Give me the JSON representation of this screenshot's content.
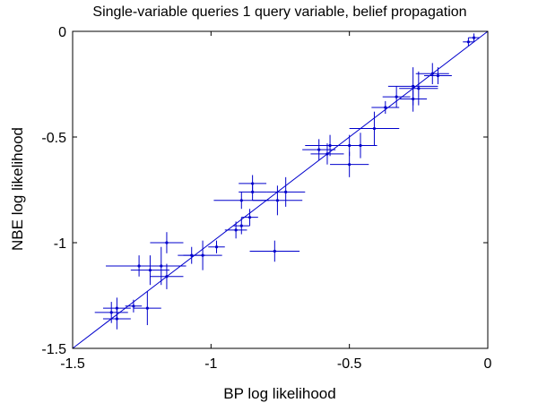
{
  "chart_data": {
    "type": "scatter",
    "title": "Single-variable queries 1 query variable, belief propagation",
    "xlabel": "BP log likelihood",
    "ylabel": "NBE log likelihood",
    "xlim": [
      -1.5,
      0
    ],
    "ylim": [
      -1.5,
      0
    ],
    "xticks": [
      -1.5,
      -1,
      -0.5,
      0
    ],
    "yticks": [
      -1.5,
      -1,
      -0.5,
      0
    ],
    "xtick_labels": [
      "-1.5",
      "-1",
      "-0.5",
      "0"
    ],
    "ytick_labels": [
      "-1.5",
      "-1",
      "-0.5",
      "0"
    ],
    "grid": false,
    "reference_line": "y = x",
    "series_color": "#0000cc",
    "points": [
      {
        "x": -0.05,
        "y": -0.03,
        "xerr": 0.02,
        "yerr": 0.02
      },
      {
        "x": -0.07,
        "y": -0.05,
        "xerr": 0.02,
        "yerr": 0.02
      },
      {
        "x": -0.2,
        "y": -0.2,
        "xerr": 0.06,
        "yerr": 0.05
      },
      {
        "x": -0.18,
        "y": -0.21,
        "xerr": 0.05,
        "yerr": 0.04
      },
      {
        "x": -0.27,
        "y": -0.26,
        "xerr": 0.09,
        "yerr": 0.09
      },
      {
        "x": -0.25,
        "y": -0.27,
        "xerr": 0.07,
        "yerr": 0.08
      },
      {
        "x": -0.27,
        "y": -0.32,
        "xerr": 0.05,
        "yerr": 0.06
      },
      {
        "x": -0.33,
        "y": -0.31,
        "xerr": 0.05,
        "yerr": 0.05
      },
      {
        "x": -0.37,
        "y": -0.36,
        "xerr": 0.05,
        "yerr": 0.03
      },
      {
        "x": -0.41,
        "y": -0.46,
        "xerr": 0.09,
        "yerr": 0.08
      },
      {
        "x": -0.46,
        "y": -0.54,
        "xerr": 0.06,
        "yerr": 0.06
      },
      {
        "x": -0.5,
        "y": -0.54,
        "xerr": 0.07,
        "yerr": 0.05
      },
      {
        "x": -0.5,
        "y": -0.63,
        "xerr": 0.07,
        "yerr": 0.06
      },
      {
        "x": -0.57,
        "y": -0.54,
        "xerr": 0.09,
        "yerr": 0.05
      },
      {
        "x": -0.58,
        "y": -0.58,
        "xerr": 0.06,
        "yerr": 0.05
      },
      {
        "x": -0.61,
        "y": -0.56,
        "xerr": 0.06,
        "yerr": 0.05
      },
      {
        "x": -0.73,
        "y": -0.76,
        "xerr": 0.07,
        "yerr": 0.07
      },
      {
        "x": -0.76,
        "y": -0.8,
        "xerr": 0.09,
        "yerr": 0.07
      },
      {
        "x": -0.77,
        "y": -1.04,
        "xerr": 0.09,
        "yerr": 0.05
      },
      {
        "x": -0.85,
        "y": -0.72,
        "xerr": 0.05,
        "yerr": 0.04
      },
      {
        "x": -0.85,
        "y": -0.76,
        "xerr": 0.05,
        "yerr": 0.04
      },
      {
        "x": -0.86,
        "y": -0.88,
        "xerr": 0.03,
        "yerr": 0.04
      },
      {
        "x": -0.89,
        "y": -0.8,
        "xerr": 0.1,
        "yerr": 0.04
      },
      {
        "x": -0.89,
        "y": -0.92,
        "xerr": 0.03,
        "yerr": 0.04
      },
      {
        "x": -0.91,
        "y": -0.94,
        "xerr": 0.04,
        "yerr": 0.04
      },
      {
        "x": -0.98,
        "y": -1.02,
        "xerr": 0.03,
        "yerr": 0.03
      },
      {
        "x": -1.03,
        "y": -1.06,
        "xerr": 0.07,
        "yerr": 0.07
      },
      {
        "x": -1.07,
        "y": -1.06,
        "xerr": 0.05,
        "yerr": 0.04
      },
      {
        "x": -1.16,
        "y": -1.0,
        "xerr": 0.06,
        "yerr": 0.05
      },
      {
        "x": -1.18,
        "y": -1.11,
        "xerr": 0.09,
        "yerr": 0.09
      },
      {
        "x": -1.16,
        "y": -1.16,
        "xerr": 0.06,
        "yerr": 0.06
      },
      {
        "x": -1.22,
        "y": -1.13,
        "xerr": 0.07,
        "yerr": 0.07
      },
      {
        "x": -1.26,
        "y": -1.11,
        "xerr": 0.12,
        "yerr": 0.05
      },
      {
        "x": -1.23,
        "y": -1.31,
        "xerr": 0.05,
        "yerr": 0.08
      },
      {
        "x": -1.28,
        "y": -1.3,
        "xerr": 0.03,
        "yerr": 0.03
      },
      {
        "x": -1.34,
        "y": -1.31,
        "xerr": 0.05,
        "yerr": 0.05
      },
      {
        "x": -1.34,
        "y": -1.36,
        "xerr": 0.05,
        "yerr": 0.05
      },
      {
        "x": -1.36,
        "y": -1.33,
        "xerr": 0.06,
        "yerr": 0.05
      }
    ]
  }
}
